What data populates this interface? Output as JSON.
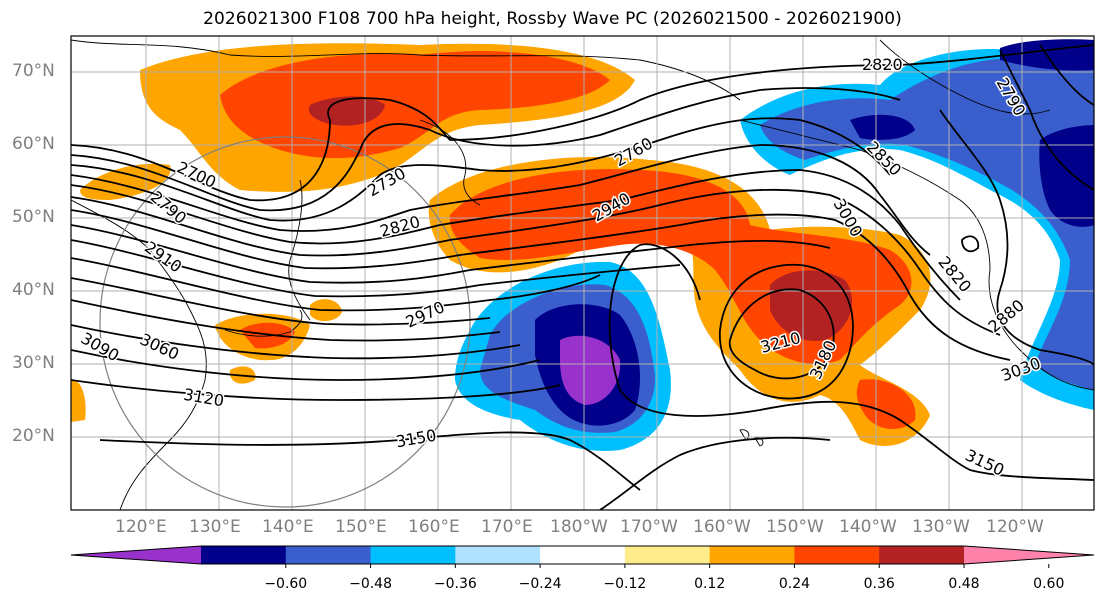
{
  "title": "2026021300 F108 700 hPa height, Rossby Wave PC (2026021500 - 2026021900)",
  "map": {
    "projection": "equirectangular",
    "lon_range": [
      "110°E",
      "110°W"
    ],
    "lat_range": [
      10,
      75
    ],
    "lon_labels": [
      "120°E",
      "130°E",
      "140°E",
      "150°E",
      "160°E",
      "170°E",
      "180°W",
      "170°W",
      "160°W",
      "150°W",
      "140°W",
      "130°W",
      "120°W"
    ],
    "lat_labels": [
      "70°N",
      "60°N",
      "50°N",
      "40°N",
      "30°N",
      "20°N"
    ],
    "grid": true,
    "contour_labels": [
      "2820",
      "2790",
      "2760",
      "2730",
      "2700",
      "2790",
      "2820",
      "2940",
      "2910",
      "3000",
      "2850",
      "3060",
      "3090",
      "2970",
      "3120",
      "3150",
      "3210",
      "3180",
      "2820",
      "2880",
      "3030",
      "3150"
    ],
    "contour_color": "#000000"
  },
  "colorbar": {
    "colors": [
      "#9932cc",
      "#00008b",
      "#3a5fcd",
      "#00bfff",
      "#b0e2ff",
      "#ffffff",
      "#ffec8b",
      "#ffa500",
      "#ff4500",
      "#b22222",
      "#ff82ab"
    ],
    "tick_labels": [
      "−0.60",
      "−0.48",
      "−0.36",
      "−0.24",
      "−0.12",
      "0.12",
      "0.24",
      "0.36",
      "0.48",
      "0.60"
    ],
    "extend": "both"
  }
}
